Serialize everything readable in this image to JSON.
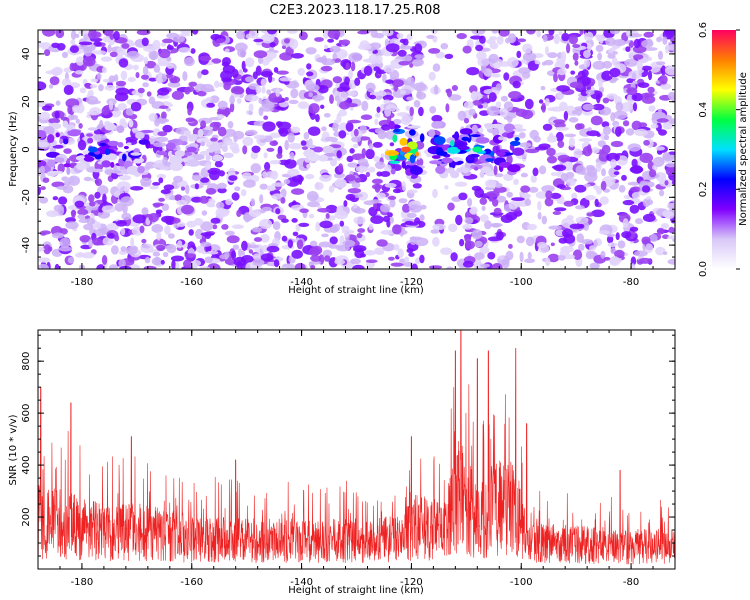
{
  "title": "C2E3.2023.118.17.25.R08",
  "colors": {
    "snr_line": "#ee2222",
    "background": "#ffffff",
    "axes": "#000000"
  },
  "chart_data": [
    {
      "type": "heatmap",
      "title": "C2E3.2023.118.17.25.R08",
      "xlabel": "Height of straight line (km)",
      "ylabel": "Frequency (Hz)",
      "xlim": [
        -188,
        -72
      ],
      "ylim": [
        -50,
        50
      ],
      "xticks": [
        -180,
        -160,
        -140,
        -120,
        -100,
        -80
      ],
      "yticks": [
        -40,
        -20,
        0,
        20,
        40
      ],
      "colorbar": {
        "label": "Normalized spectral amplitude",
        "range": [
          0,
          0.6
        ],
        "ticks": [
          "0.0",
          "0.2",
          "0.4",
          "0.6"
        ],
        "colormap": [
          "#ffffff",
          "#d8c8f8",
          "#8000ff",
          "#0000ff",
          "#00e0ff",
          "#00ff40",
          "#ffff00",
          "#ff8000",
          "#ff0060"
        ]
      },
      "strong_echo_band": {
        "frequency_hz": 0,
        "segments": [
          {
            "x_from": -188,
            "x_to": -168,
            "peak": 0.25
          },
          {
            "x_from": -168,
            "x_to": -152,
            "peak": 0.12
          },
          {
            "x_from": -140,
            "x_to": -134,
            "peak": 0.12
          },
          {
            "x_from": -124,
            "x_to": -118,
            "peak": 0.55
          },
          {
            "x_from": -116,
            "x_to": -100,
            "peak": 0.35
          }
        ]
      }
    },
    {
      "type": "line",
      "xlabel": "Height of straight line (km)",
      "ylabel": "SNR (10 * v/v)",
      "xlim": [
        -188,
        -72
      ],
      "ylim": [
        0,
        920
      ],
      "xticks": [
        -180,
        -160,
        -140,
        -120,
        -100,
        -80
      ],
      "yticks": [
        200,
        400,
        600,
        800
      ],
      "series": [
        {
          "color": "#ee2222",
          "baseline": [
            {
              "x": -188,
              "y": 250
            },
            {
              "x": -182,
              "y": 230
            },
            {
              "x": -176,
              "y": 190
            },
            {
              "x": -170,
              "y": 200
            },
            {
              "x": -160,
              "y": 160
            },
            {
              "x": -150,
              "y": 150
            },
            {
              "x": -140,
              "y": 150
            },
            {
              "x": -130,
              "y": 150
            },
            {
              "x": -122,
              "y": 160
            },
            {
              "x": -119,
              "y": 230
            },
            {
              "x": -114,
              "y": 200
            },
            {
              "x": -111,
              "y": 420
            },
            {
              "x": -108,
              "y": 230
            },
            {
              "x": -105,
              "y": 330
            },
            {
              "x": -101,
              "y": 320
            },
            {
              "x": -99,
              "y": 140
            },
            {
              "x": -90,
              "y": 130
            },
            {
              "x": -80,
              "y": 120
            },
            {
              "x": -72,
              "y": 120
            }
          ],
          "peaks": [
            {
              "x": -187.5,
              "y": 700
            },
            {
              "x": -182,
              "y": 640
            },
            {
              "x": -171,
              "y": 510
            },
            {
              "x": -152,
              "y": 420
            },
            {
              "x": -120,
              "y": 510
            },
            {
              "x": -112,
              "y": 840
            },
            {
              "x": -111,
              "y": 920
            },
            {
              "x": -108,
              "y": 810
            },
            {
              "x": -106,
              "y": 840
            },
            {
              "x": -101,
              "y": 850
            },
            {
              "x": -99,
              "y": 560
            },
            {
              "x": -82,
              "y": 380
            }
          ]
        }
      ]
    }
  ]
}
